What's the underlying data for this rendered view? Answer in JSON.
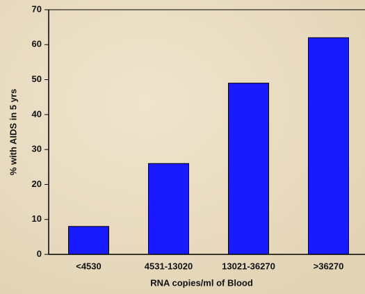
{
  "chart_data": {
    "type": "bar",
    "categories": [
      "<4530",
      "4531-13020",
      "13021-36270",
      ">36270"
    ],
    "values": [
      8,
      26,
      49,
      62
    ],
    "color": "#1a1aff",
    "x_label": "RNA copies/ml of Blood",
    "y_label": "% with AIDS in 5 yrs",
    "ylim": [
      0,
      70
    ],
    "yticks": [
      0,
      10,
      20,
      30,
      40,
      50,
      60,
      70
    ]
  }
}
